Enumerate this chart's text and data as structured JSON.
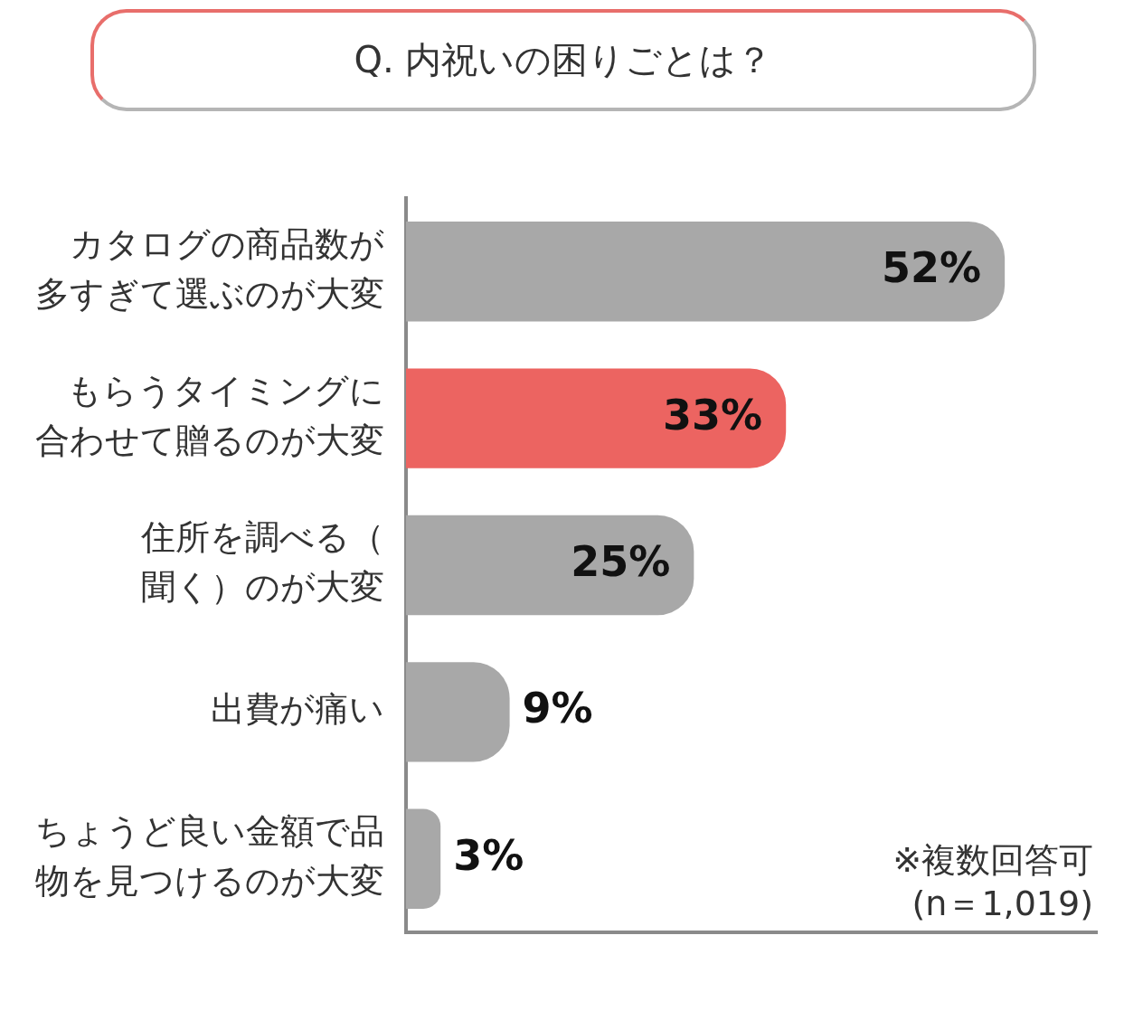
{
  "chart_data": {
    "type": "bar",
    "orientation": "horizontal",
    "title": "Q. 内祝いの困りごとは？",
    "categories": [
      "カタログの商品数が多すぎて選ぶのが大変",
      "もらうタイミングに合わせて贈るのが大変",
      "住所を調べる（聞く）のが大変",
      "出費が痛い",
      "ちょうど良い金額で品物を見つけるのが大変"
    ],
    "values": [
      52,
      33,
      25,
      9,
      3
    ],
    "colors": [
      "#a8a8a8",
      "#ec6461",
      "#a8a8a8",
      "#a8a8a8",
      "#a8a8a8"
    ],
    "value_labels": [
      "52%",
      "33%",
      "25%",
      "9%",
      "3%"
    ],
    "tick_labels": "y",
    "grid": false,
    "legend": false,
    "annotations": [
      "※複数回答可",
      "(n＝1,019)"
    ]
  }
}
